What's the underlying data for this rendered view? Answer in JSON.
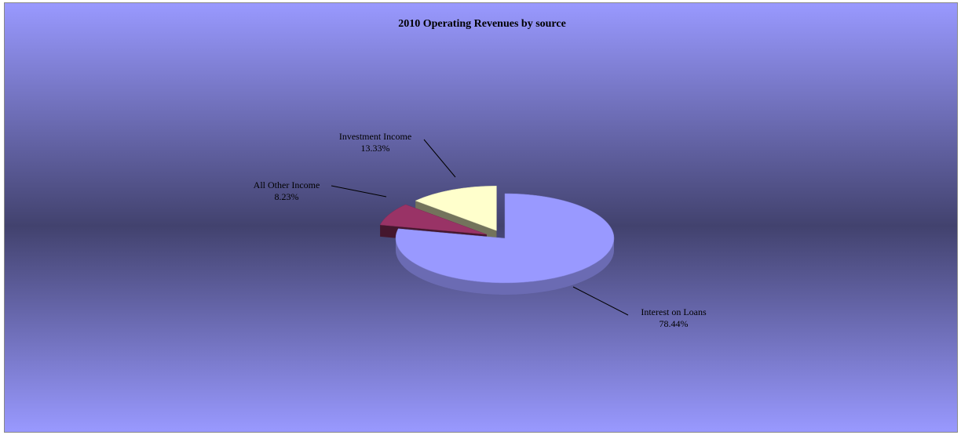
{
  "chart_data": {
    "type": "pie",
    "title": "2010 Operating Revenues by source",
    "categories": [
      "Interest on Loans",
      "All Other Income",
      "Investment Income"
    ],
    "values": [
      78.44,
      8.23,
      13.33
    ],
    "value_labels": [
      "78.44%",
      "8.23%",
      "13.33%"
    ],
    "colors": [
      "#9999ff",
      "#993366",
      "#ffffcc"
    ]
  }
}
